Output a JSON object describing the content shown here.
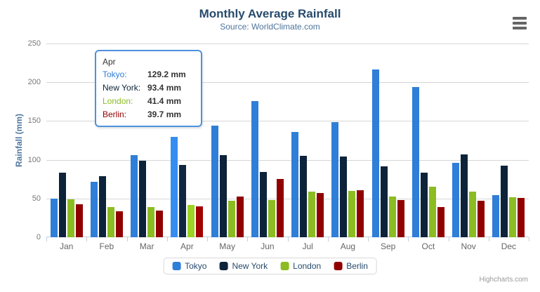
{
  "header": {
    "title": "Monthly Average Rainfall",
    "subtitle": "Source: WorldClimate.com",
    "menu_icon": "hamburger-menu-icon"
  },
  "yaxis": {
    "title": "Rainfall (mm)",
    "ticks": [
      "250",
      "200",
      "150",
      "100",
      "50",
      "0"
    ]
  },
  "chart_data": {
    "type": "bar",
    "title": "Monthly Average Rainfall",
    "subtitle": "Source: WorldClimate.com",
    "xlabel": "",
    "ylabel": "Rainfall (mm)",
    "ylim": [
      0,
      250
    ],
    "grid": true,
    "legend_position": "bottom",
    "hover_category": "Apr",
    "categories": [
      "Jan",
      "Feb",
      "Mar",
      "Apr",
      "May",
      "Jun",
      "Jul",
      "Aug",
      "Sep",
      "Oct",
      "Nov",
      "Dec"
    ],
    "series": [
      {
        "name": "Tokyo",
        "color": "#2f7ed8",
        "values": [
          49.9,
          71.5,
          106.4,
          129.2,
          144.0,
          176.0,
          135.6,
          148.5,
          216.4,
          194.1,
          95.6,
          54.4
        ]
      },
      {
        "name": "New York",
        "color": "#0d233a",
        "values": [
          83.6,
          78.8,
          98.5,
          93.4,
          106.0,
          84.5,
          105.0,
          104.3,
          91.2,
          83.5,
          106.6,
          92.3
        ]
      },
      {
        "name": "London",
        "color": "#8bbc21",
        "values": [
          48.9,
          38.8,
          39.3,
          41.4,
          47.0,
          48.3,
          59.0,
          59.6,
          52.4,
          65.2,
          59.3,
          51.2
        ]
      },
      {
        "name": "Berlin",
        "color": "#910000",
        "values": [
          42.4,
          33.2,
          34.5,
          39.7,
          52.6,
          75.5,
          57.4,
          60.4,
          47.6,
          39.1,
          46.8,
          51.1
        ]
      }
    ]
  },
  "tooltip": {
    "header": "Apr",
    "border_color": "#4e91de",
    "rows": [
      {
        "name": "Tokyo:",
        "value": "129.2 mm",
        "color": "#2f7ed8"
      },
      {
        "name": "New York:",
        "value": "93.4 mm",
        "color": "#0d233a"
      },
      {
        "name": "London:",
        "value": "41.4 mm",
        "color": "#8bbc21"
      },
      {
        "name": "Berlin:",
        "value": "39.7 mm",
        "color": "#910000"
      }
    ]
  },
  "legend": {
    "items": [
      {
        "label": "Tokyo",
        "color": "#2f7ed8"
      },
      {
        "label": "New York",
        "color": "#0d233a"
      },
      {
        "label": "London",
        "color": "#8bbc21"
      },
      {
        "label": "Berlin",
        "color": "#910000"
      }
    ]
  },
  "credits": {
    "text": "Highcharts.com"
  }
}
